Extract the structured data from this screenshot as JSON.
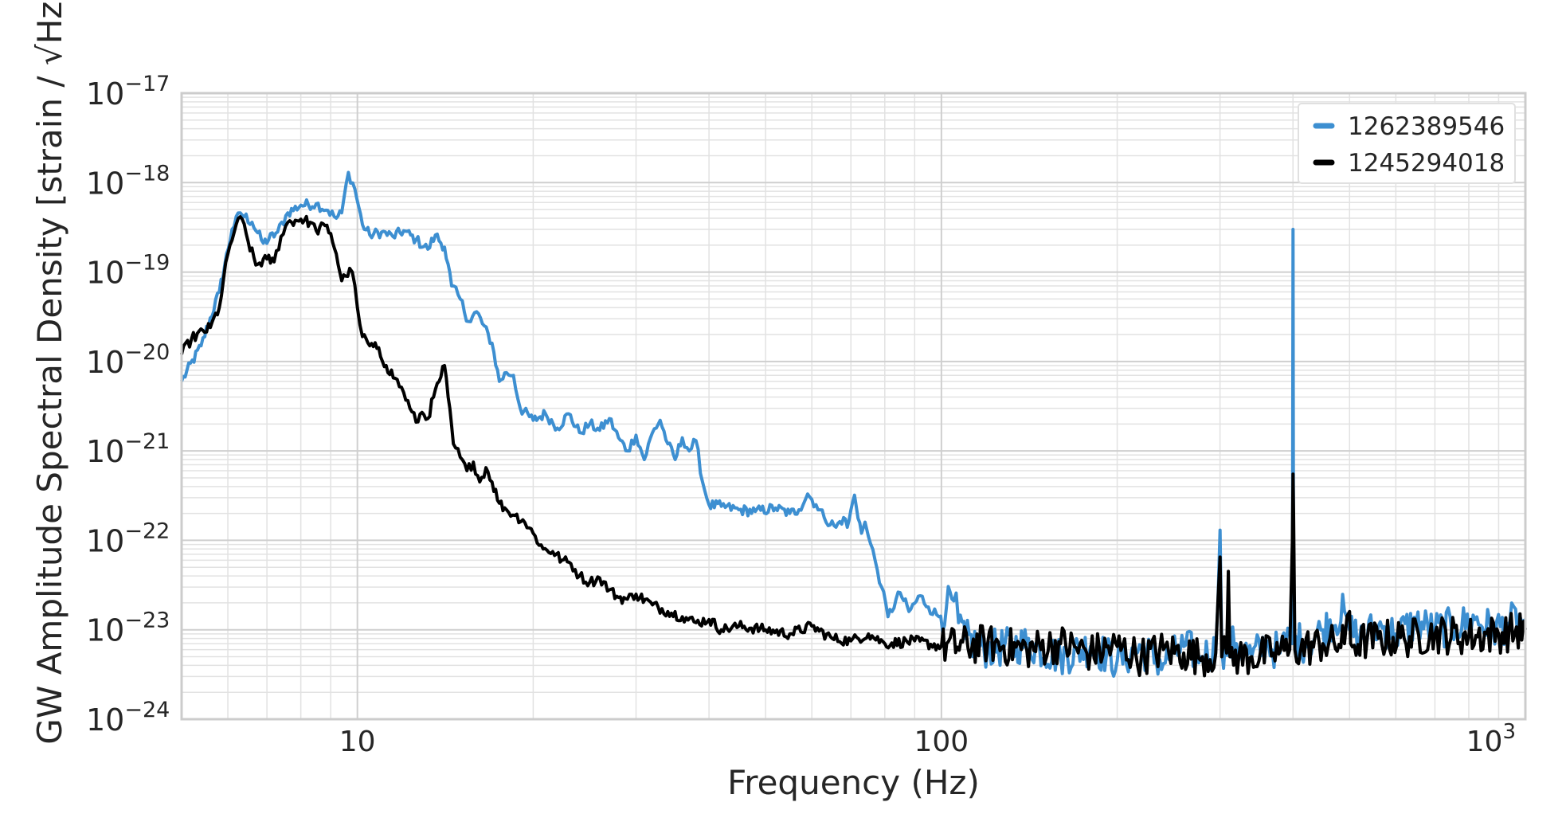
{
  "chart_data": {
    "type": "line",
    "xlabel": "Frequency (Hz)",
    "ylabel": "GW Amplitude Spectral Density [strain / √Hz]",
    "xscale": "log",
    "yscale": "log",
    "xlim": [
      5,
      1000
    ],
    "ylim": [
      1e-24,
      1e-17
    ],
    "grid": true,
    "legend_position": "top-right",
    "x_ticks": [
      {
        "value": 10,
        "mantissa": "10",
        "exp": ""
      },
      {
        "value": 100,
        "mantissa": "100",
        "exp": ""
      },
      {
        "value": 1000,
        "mantissa": "10",
        "exp": "3"
      }
    ],
    "y_ticks": [
      {
        "value": 1e-24,
        "mantissa": "10",
        "exp": "−24"
      },
      {
        "value": 1e-23,
        "mantissa": "10",
        "exp": "−23"
      },
      {
        "value": 1e-22,
        "mantissa": "10",
        "exp": "−22"
      },
      {
        "value": 1e-21,
        "mantissa": "10",
        "exp": "−21"
      },
      {
        "value": 1e-20,
        "mantissa": "10",
        "exp": "−20"
      },
      {
        "value": 1e-19,
        "mantissa": "10",
        "exp": "−19"
      },
      {
        "value": 1e-18,
        "mantissa": "10",
        "exp": "−18"
      },
      {
        "value": 1e-17,
        "mantissa": "10",
        "exp": "−17"
      }
    ],
    "series": [
      {
        "name": "1262389546",
        "color": "#3d8fd1",
        "points": [
          [
            5,
            6e-21
          ],
          [
            5.4,
            1.5e-20
          ],
          [
            5.8,
            6e-20
          ],
          [
            6.1,
            3e-19
          ],
          [
            6.3,
            4.6e-19
          ],
          [
            6.6,
            3.6e-19
          ],
          [
            6.9,
            2.1e-19
          ],
          [
            7.3,
            2.8e-19
          ],
          [
            7.6,
            4.6e-19
          ],
          [
            8.0,
            5.6e-19
          ],
          [
            8.5,
            5.8e-19
          ],
          [
            8.9,
            4.9e-19
          ],
          [
            9.2,
            4e-19
          ],
          [
            9.4,
            4.6e-19
          ],
          [
            9.65,
            1.3e-18
          ],
          [
            9.9,
            8.5e-19
          ],
          [
            10.2,
            3.4e-19
          ],
          [
            10.5,
            2.6e-19
          ],
          [
            11,
            2.8e-19
          ],
          [
            11.5,
            2.5e-19
          ],
          [
            12,
            2.9e-19
          ],
          [
            12.6,
            2.3e-19
          ],
          [
            13.2,
            1.8e-19
          ],
          [
            13.6,
            2.6e-19
          ],
          [
            14.1,
            1.9e-19
          ],
          [
            14.5,
            7e-20
          ],
          [
            15,
            5e-20
          ],
          [
            15.5,
            2.8e-20
          ],
          [
            16,
            3.6e-20
          ],
          [
            17,
            1.6e-20
          ],
          [
            17.5,
            6e-21
          ],
          [
            18,
            7.5e-21
          ],
          [
            18.5,
            7e-21
          ],
          [
            19,
            3e-21
          ],
          [
            20,
            2.2e-21
          ],
          [
            21,
            2.6e-21
          ],
          [
            22,
            1.8e-21
          ],
          [
            23,
            2.6e-21
          ],
          [
            24,
            1.6e-21
          ],
          [
            25,
            2e-21
          ],
          [
            26,
            1.7e-21
          ],
          [
            27,
            2.3e-21
          ],
          [
            28,
            1.4e-21
          ],
          [
            29,
            1e-21
          ],
          [
            30,
            1.5e-21
          ],
          [
            31,
            8e-22
          ],
          [
            32,
            1.6e-21
          ],
          [
            33,
            2.2e-21
          ],
          [
            34,
            1.2e-21
          ],
          [
            35,
            8e-22
          ],
          [
            36,
            1.4e-21
          ],
          [
            37,
            1e-21
          ],
          [
            38,
            1.3e-21
          ],
          [
            39,
            4.5e-22
          ],
          [
            40,
            2.5e-22
          ],
          [
            42,
            2.4e-22
          ],
          [
            45,
            2.2e-22
          ],
          [
            48,
            2.1e-22
          ],
          [
            52,
            2.3e-22
          ],
          [
            55,
            2e-22
          ],
          [
            57,
            2.2e-22
          ],
          [
            59,
            3.3e-22
          ],
          [
            61,
            2.5e-22
          ],
          [
            63,
            1.8e-22
          ],
          [
            66,
            1.4e-22
          ],
          [
            68,
            1.8e-22
          ],
          [
            69,
            1.4e-22
          ],
          [
            71,
            3.2e-22
          ],
          [
            73,
            1.2e-22
          ],
          [
            74,
            1.6e-22
          ],
          [
            75,
            1.1e-22
          ],
          [
            77,
            6e-23
          ],
          [
            79,
            3e-23
          ],
          [
            81,
            1.4e-23
          ],
          [
            85,
            2.6e-23
          ],
          [
            88,
            1.6e-23
          ],
          [
            92,
            2.4e-23
          ],
          [
            95,
            1.8e-23
          ],
          [
            99,
            1.4e-23
          ],
          [
            102,
            1.8e-23
          ],
          [
            105,
            2.1e-23
          ],
          [
            107,
            1.2e-23
          ],
          [
            110,
            8e-24
          ],
          [
            120,
            6e-24
          ],
          [
            140,
            7e-24
          ],
          [
            160,
            5e-24
          ],
          [
            180,
            6.5e-24
          ],
          [
            200,
            4.5e-24
          ],
          [
            220,
            6e-24
          ],
          [
            240,
            4.2e-24
          ],
          [
            260,
            6.5e-24
          ],
          [
            280,
            5e-24
          ],
          [
            295,
            6e-24
          ],
          [
            300,
            1.3e-22
          ],
          [
            302,
            6e-24
          ],
          [
            320,
            7e-24
          ],
          [
            340,
            5e-24
          ],
          [
            360,
            7e-24
          ],
          [
            380,
            5.5e-24
          ],
          [
            395,
            9e-24
          ],
          [
            399,
            7e-24
          ],
          [
            400,
            3e-19
          ],
          [
            401,
            8e-24
          ],
          [
            420,
            7e-24
          ],
          [
            450,
            1e-23
          ],
          [
            490,
            1.6e-23
          ],
          [
            500,
            1e-23
          ],
          [
            520,
            8e-24
          ],
          [
            560,
            1.1e-23
          ],
          [
            600,
            9e-24
          ],
          [
            650,
            1.2e-23
          ],
          [
            700,
            1e-23
          ],
          [
            760,
            1.1e-23
          ],
          [
            820,
            1.3e-23
          ],
          [
            880,
            1e-23
          ],
          [
            940,
            1.2e-23
          ],
          [
            1000,
            1.3e-23
          ]
        ]
      },
      {
        "name": "1245294018",
        "color": "#000000",
        "points": [
          [
            5,
            1.2e-20
          ],
          [
            5.2,
            1.8e-20
          ],
          [
            5.6,
            2.4e-20
          ],
          [
            5.8,
            4e-20
          ],
          [
            6.0,
            1.6e-19
          ],
          [
            6.2,
            3.4e-19
          ],
          [
            6.35,
            3.9e-19
          ],
          [
            6.5,
            2.2e-19
          ],
          [
            6.7,
            1.2e-19
          ],
          [
            7,
            1.4e-19
          ],
          [
            7.2,
            1.3e-19
          ],
          [
            7.4,
            2.5e-19
          ],
          [
            7.6,
            3.6e-19
          ],
          [
            8.0,
            3.9e-19
          ],
          [
            8.3,
            3.6e-19
          ],
          [
            8.5,
            2.9e-19
          ],
          [
            8.8,
            3.3e-19
          ],
          [
            9.0,
            2.7e-19
          ],
          [
            9.2,
            1.6e-19
          ],
          [
            9.4,
            8e-20
          ],
          [
            9.55,
            9e-20
          ],
          [
            9.7,
            1.1e-19
          ],
          [
            9.8,
            1e-19
          ],
          [
            10,
            4e-20
          ],
          [
            10.2,
            1.9e-20
          ],
          [
            10.5,
            1.5e-20
          ],
          [
            10.8,
            1.4e-20
          ],
          [
            11.2,
            9e-21
          ],
          [
            11.6,
            6.5e-21
          ],
          [
            12,
            4.5e-21
          ],
          [
            12.3,
            3e-21
          ],
          [
            12.6,
            2.1e-21
          ],
          [
            12.9,
            2.7e-21
          ],
          [
            13.2,
            2.3e-21
          ],
          [
            13.5,
            4e-21
          ],
          [
            13.8,
            6e-21
          ],
          [
            14.1,
            9e-21
          ],
          [
            14.3,
            4e-21
          ],
          [
            14.6,
            1.2e-21
          ],
          [
            15,
            8.5e-22
          ],
          [
            15.4,
            6e-22
          ],
          [
            15.8,
            7.5e-22
          ],
          [
            16.2,
            4.5e-22
          ],
          [
            16.6,
            6.5e-22
          ],
          [
            17,
            4.5e-22
          ],
          [
            17.5,
            2.6e-22
          ],
          [
            18,
            2.2e-22
          ],
          [
            18.6,
            1.9e-22
          ],
          [
            19.2,
            1.7e-22
          ],
          [
            20,
            1.2e-22
          ],
          [
            20.8,
            8e-23
          ],
          [
            21.6,
            7.5e-23
          ],
          [
            22.4,
            6e-23
          ],
          [
            23.2,
            5.5e-23
          ],
          [
            24,
            4e-23
          ],
          [
            25,
            3.4e-23
          ],
          [
            26,
            3.8e-23
          ],
          [
            27,
            2.8e-23
          ],
          [
            28,
            2.3e-23
          ],
          [
            29,
            2.2e-23
          ],
          [
            30,
            2.5e-23
          ],
          [
            32,
            1.9e-23
          ],
          [
            34,
            1.6e-23
          ],
          [
            36,
            1.4e-23
          ],
          [
            38,
            1.2e-23
          ],
          [
            40,
            1.3e-23
          ],
          [
            42,
            1e-23
          ],
          [
            45,
            1.1e-23
          ],
          [
            50,
            1e-23
          ],
          [
            55,
            9e-24
          ],
          [
            60,
            1.1e-23
          ],
          [
            65,
            8e-24
          ],
          [
            70,
            7.5e-24
          ],
          [
            75,
            9e-24
          ],
          [
            80,
            7e-24
          ],
          [
            90,
            7.5e-24
          ],
          [
            100,
            6.5e-24
          ],
          [
            120,
            7e-24
          ],
          [
            140,
            6e-24
          ],
          [
            160,
            7e-24
          ],
          [
            180,
            5.5e-24
          ],
          [
            200,
            6.5e-24
          ],
          [
            220,
            5e-24
          ],
          [
            240,
            6e-24
          ],
          [
            260,
            5.5e-24
          ],
          [
            280,
            5e-24
          ],
          [
            295,
            5.5e-24
          ],
          [
            300,
            6.5e-23
          ],
          [
            302,
            5e-24
          ],
          [
            308,
            5.5e-24
          ],
          [
            310,
            4.5e-23
          ],
          [
            312,
            5e-24
          ],
          [
            340,
            5e-24
          ],
          [
            370,
            5.5e-24
          ],
          [
            395,
            6e-24
          ],
          [
            399,
            1e-22
          ],
          [
            400,
            5.5e-22
          ],
          [
            401,
            2e-22
          ],
          [
            403,
            6e-24
          ],
          [
            450,
            7e-24
          ],
          [
            490,
            7e-24
          ],
          [
            500,
            1.6e-23
          ],
          [
            502,
            7e-24
          ],
          [
            560,
            8e-24
          ],
          [
            620,
            8e-24
          ],
          [
            700,
            9e-24
          ],
          [
            800,
            8.5e-24
          ],
          [
            900,
            9e-24
          ],
          [
            1000,
            1e-23
          ]
        ]
      }
    ]
  }
}
